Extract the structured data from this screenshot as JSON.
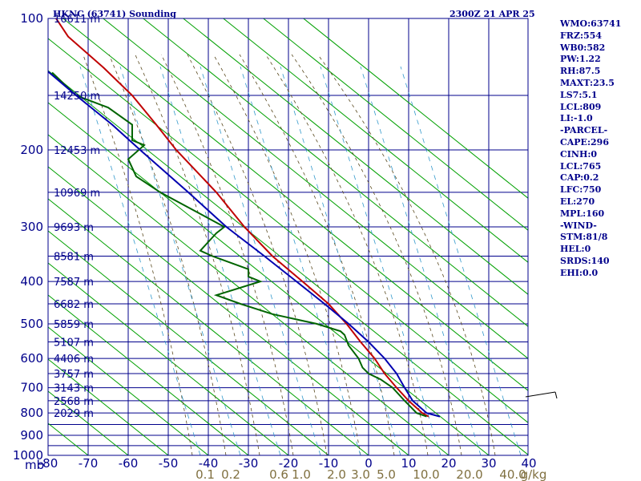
{
  "chart_data": {
    "type": "line",
    "title": "HKNC (63741) Sounding",
    "time": "2300Z 21 APR 25",
    "y_axis_unit": "mb",
    "y_scale": "log",
    "ylim": [
      1000,
      100
    ],
    "xlim": [
      -80,
      40
    ],
    "y_ticks": [
      "100",
      "200",
      "300",
      "400",
      "500",
      "600",
      "700",
      "800",
      "900",
      "1000"
    ],
    "x_ticks": [
      "-80",
      "-70",
      "-60",
      "-50",
      "-40",
      "-30",
      "-20",
      "-10",
      "0",
      "10",
      "20",
      "30",
      "40"
    ],
    "heights": [
      {
        "p": 100,
        "label": "16611 m"
      },
      {
        "p": 150,
        "label": "14250 m"
      },
      {
        "p": 200,
        "label": "12453 m"
      },
      {
        "p": 250,
        "label": "10969 m"
      },
      {
        "p": 300,
        "label": "9693 m"
      },
      {
        "p": 350,
        "label": "8581 m"
      },
      {
        "p": 400,
        "label": "7587 m"
      },
      {
        "p": 450,
        "label": "6682 m"
      },
      {
        "p": 500,
        "label": "5859 m"
      },
      {
        "p": 550,
        "label": "5107 m"
      },
      {
        "p": 600,
        "label": "4406 m"
      },
      {
        "p": 650,
        "label": "3757 m"
      },
      {
        "p": 700,
        "label": "3143 m"
      },
      {
        "p": 750,
        "label": "2568 m"
      },
      {
        "p": 800,
        "label": "2029 m"
      }
    ],
    "mixing_ratio_labels": [
      "0.1",
      "0.2",
      "0.6",
      "1.0",
      "2.0",
      "3.0",
      "5.0",
      "10.0",
      "20.0",
      "40.0",
      "g/kg"
    ],
    "mixing_ratio_values": [
      0.1,
      0.2,
      0.6,
      1.0,
      2.0,
      3.0,
      5.0,
      10.0,
      20.0,
      40.0
    ],
    "series": [
      {
        "color": "#c00000",
        "points": [
          [
            100,
            -78
          ],
          [
            110,
            -75
          ],
          [
            130,
            -66
          ],
          [
            150,
            -59
          ],
          [
            175,
            -53
          ],
          [
            200,
            -48
          ],
          [
            250,
            -38
          ],
          [
            300,
            -31
          ],
          [
            350,
            -24
          ],
          [
            400,
            -16.5
          ],
          [
            450,
            -10
          ],
          [
            500,
            -5.5
          ],
          [
            550,
            -2
          ],
          [
            600,
            1.5
          ],
          [
            650,
            4
          ],
          [
            700,
            7
          ],
          [
            750,
            10
          ],
          [
            800,
            13.4
          ],
          [
            815,
            15.0
          ]
        ]
      },
      {
        "color": "#006400",
        "points": [
          [
            133,
            -79
          ],
          [
            150,
            -73
          ],
          [
            160,
            -65
          ],
          [
            175,
            -59
          ],
          [
            190,
            -59
          ],
          [
            195,
            -56
          ],
          [
            210,
            -60
          ],
          [
            230,
            -58
          ],
          [
            250,
            -52
          ],
          [
            300,
            -36
          ],
          [
            310,
            -38
          ],
          [
            340,
            -42
          ],
          [
            350,
            -39
          ],
          [
            375,
            -30
          ],
          [
            390,
            -30
          ],
          [
            400,
            -27
          ],
          [
            430,
            -38
          ],
          [
            450,
            -32
          ],
          [
            475,
            -24
          ],
          [
            500,
            -13
          ],
          [
            520,
            -7
          ],
          [
            530,
            -6
          ],
          [
            560,
            -5
          ],
          [
            600,
            -2.5
          ],
          [
            630,
            -1.5
          ],
          [
            650,
            0
          ],
          [
            670,
            3
          ],
          [
            700,
            6
          ],
          [
            750,
            9
          ],
          [
            800,
            12
          ],
          [
            815,
            14.5
          ]
        ]
      },
      {
        "color": "#0000b0",
        "points": [
          [
            130,
            -81
          ],
          [
            150,
            -73
          ],
          [
            175,
            -64
          ],
          [
            200,
            -57
          ],
          [
            250,
            -45
          ],
          [
            300,
            -35.5
          ],
          [
            350,
            -26
          ],
          [
            400,
            -18
          ],
          [
            450,
            -11
          ],
          [
            500,
            -5
          ],
          [
            550,
            0
          ],
          [
            600,
            4
          ],
          [
            650,
            7
          ],
          [
            700,
            9
          ],
          [
            750,
            11
          ],
          [
            800,
            14.5
          ],
          [
            815,
            17.8
          ]
        ]
      }
    ],
    "grid": true
  },
  "stats": [
    "WMO:63741",
    "FRZ:554",
    "WB0:582",
    "PW:1.22",
    "RH:87.5",
    "MAXT:23.5",
    "LS7:5.1",
    "LCL:809",
    "LI:-1.0",
    "-PARCEL-",
    "CAPE:296",
    "CINH:0",
    "LCL:765",
    "CAP:0.2",
    "LFC:750",
    "EL:270",
    "MPL:160",
    "-WIND-",
    "STM:81/8",
    "HEL:0",
    "SRDS:140",
    "EHI:0.0"
  ],
  "colors": {
    "grid": "#00008b",
    "isotherm": "#00008b",
    "dry_adiabat": "#00a000",
    "moist_adiabat": "#5a4a20",
    "mixing_ratio": "#3399cc",
    "axis_text": "#00008b",
    "mixing_text": "#807040"
  }
}
